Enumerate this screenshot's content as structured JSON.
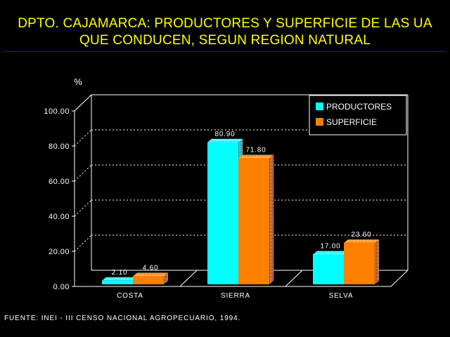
{
  "title_line1": "DPTO. CAJAMARCA: PRODUCTORES Y SUPERFICIE DE LAS UA",
  "title_line2": "QUE CONDUCEN, SEGUN REGION NATURAL",
  "source": "FUENTE: INEI - III CENSO NACIONAL AGROPECUARIO, 1994.",
  "colors": {
    "title": "#ffff00",
    "productores": "#00ffff",
    "superficie": "#ff7f00",
    "background": "#000000"
  },
  "chart_data": {
    "type": "bar",
    "title": "DPTO. CAJAMARCA: PRODUCTORES Y SUPERFICIE DE LAS UA QUE CONDUCEN, SEGUN REGION NATURAL",
    "ylabel": "%",
    "xlabel": "",
    "ylim": [
      0,
      100
    ],
    "yticks": [
      "0.00",
      "20.00",
      "40.00",
      "60.00",
      "80.00",
      "100.00"
    ],
    "categories": [
      "COSTA",
      "SIERRA",
      "SELVA"
    ],
    "series": [
      {
        "name": "PRODUCTORES",
        "color": "#00ffff",
        "values": [
          2.1,
          80.9,
          17.0
        ],
        "labels": [
          "2.10",
          "80.90",
          "17.00"
        ]
      },
      {
        "name": "SUPERFICIE",
        "color": "#ff7f00",
        "values": [
          4.6,
          71.8,
          23.6
        ],
        "labels": [
          "4.60",
          "71.80",
          "23.60"
        ]
      }
    ],
    "grid": true,
    "legend": "top-right",
    "style": "3d"
  }
}
